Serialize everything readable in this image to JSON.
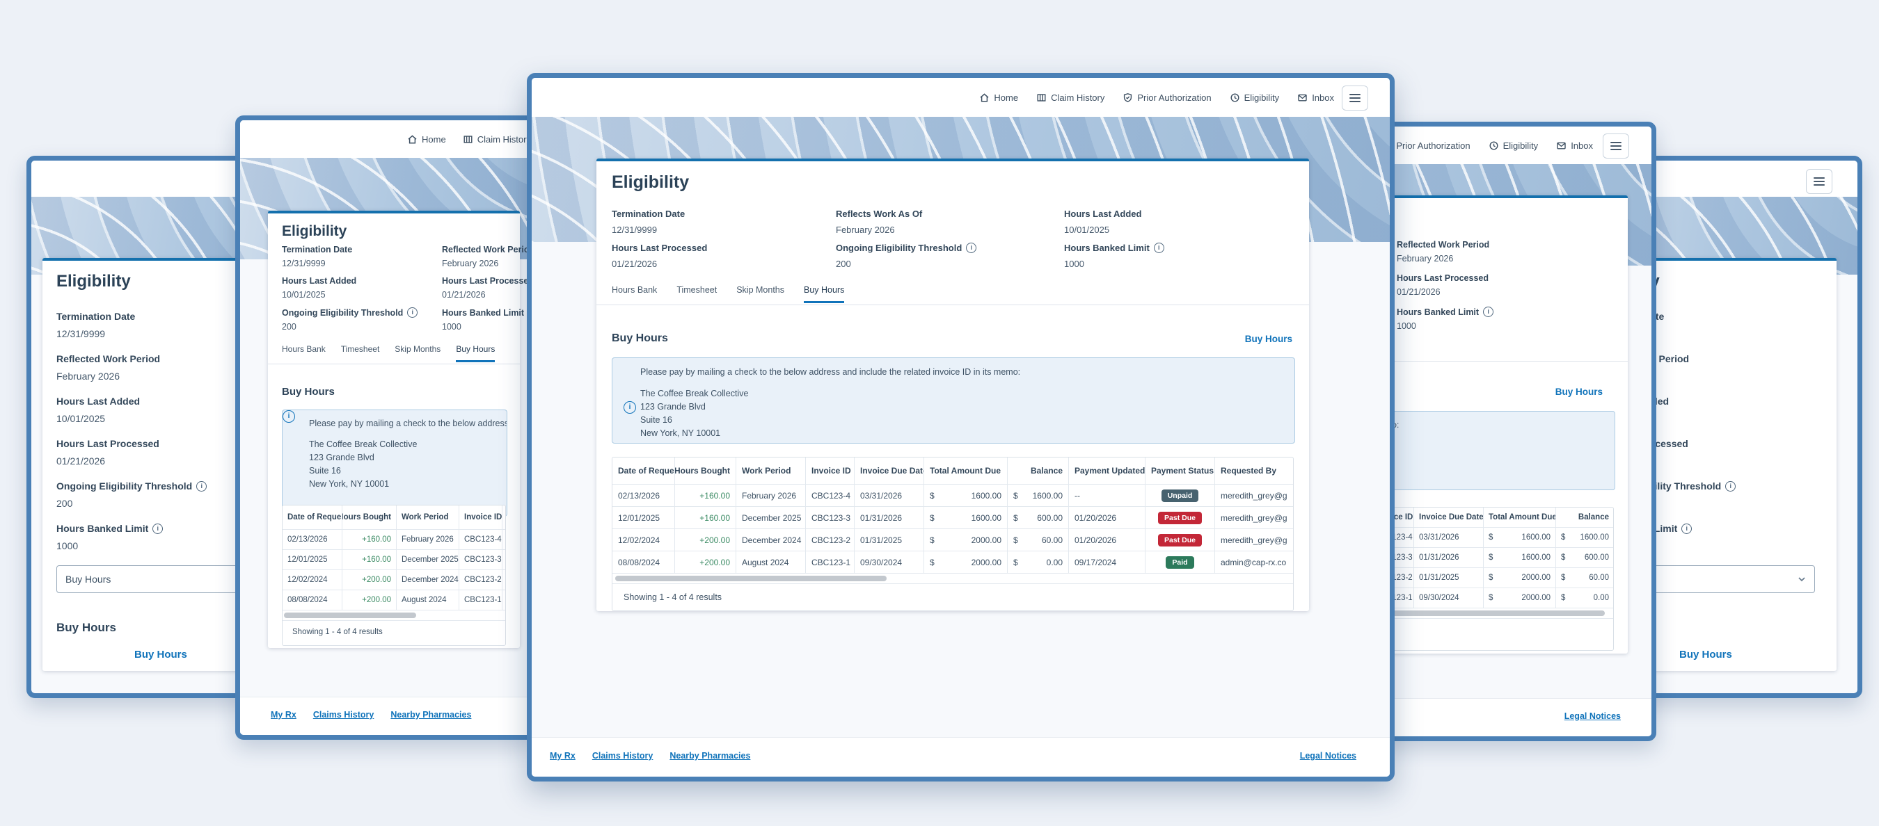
{
  "colors": {
    "window_border": "#4a80b6",
    "accent_blue": "#1073ba",
    "card_accent": "#1470ad",
    "badge_unpaid": "#47626f",
    "badge_pastdue": "#c32737",
    "badge_paid": "#2c7a5b",
    "hours_positive": "#3a8a63"
  },
  "nav": {
    "items": [
      {
        "label": "Home",
        "icon": "home-icon"
      },
      {
        "label": "Claim History",
        "icon": "claim-history-icon"
      },
      {
        "label": "Prior Authorization",
        "icon": "prior-authorization-icon"
      },
      {
        "label": "Eligibility",
        "icon": "eligibility-icon"
      },
      {
        "label": "Inbox",
        "icon": "inbox-icon"
      }
    ]
  },
  "eligibility": {
    "title": "Eligibility",
    "tabs": [
      "Hours Bank",
      "Timesheet",
      "Skip Months",
      "Buy Hours"
    ],
    "active_tab": "Buy Hours",
    "fields": {
      "termination": {
        "label": "Termination Date",
        "value": "12/31/9999"
      },
      "reflects": {
        "label": "Reflects Work As Of",
        "value": "February 2026"
      },
      "reflected": {
        "label": "Reflected Work Period",
        "value": "February 2026"
      },
      "added": {
        "label": "Hours Last Added",
        "value": "10/01/2025"
      },
      "processed": {
        "label": "Hours Last Processed",
        "value": "01/21/2026"
      },
      "threshold": {
        "label": "Ongoing Eligibility Threshold",
        "value": "200",
        "info": true
      },
      "banked": {
        "label": "Hours Banked Limit",
        "value": "1000",
        "info": true
      }
    }
  },
  "buy_hours": {
    "heading": "Buy Hours",
    "link_label": "Buy Hours",
    "mobile_select_value": "Buy Hours",
    "notice": "Please pay by mailing a check to the below address and include the related invoice ID in its memo:",
    "address": [
      "The Coffee Break Collective",
      "123 Grande Blvd",
      "Suite 16",
      "New York, NY 10001"
    ],
    "table": {
      "currency": "$",
      "columns": {
        "date": "Date of Request",
        "hours": "Hours Bought",
        "work": "Work Period",
        "invoice": "Invoice ID",
        "due": "Invoice Due Date",
        "total": "Total Amount Due",
        "balance": "Balance",
        "updated": "Payment Updated",
        "status": "Payment Status",
        "requested": "Requested By"
      },
      "rows": [
        {
          "date": "02/13/2026",
          "hours": "+160.00",
          "work": "February 2026",
          "invoice": "CBC123-4",
          "due": "03/31/2026",
          "total": "1600.00",
          "balance": "1600.00",
          "updated": "--",
          "status": "Unpaid",
          "status_type": "unpaid",
          "requested": "meredith_grey@g"
        },
        {
          "date": "12/01/2025",
          "hours": "+160.00",
          "work": "December 2025",
          "invoice": "CBC123-3",
          "due": "01/31/2026",
          "total": "1600.00",
          "balance": "600.00",
          "updated": "01/20/2026",
          "status": "Past Due",
          "status_type": "pastdue",
          "requested": "meredith_grey@g"
        },
        {
          "date": "12/02/2024",
          "hours": "+200.00",
          "work": "December 2024",
          "invoice": "CBC123-2",
          "due": "01/31/2025",
          "total": "2000.00",
          "balance": "60.00",
          "updated": "01/20/2026",
          "status": "Past Due",
          "status_type": "pastdue",
          "requested": "meredith_grey@g"
        },
        {
          "date": "08/08/2024",
          "hours": "+200.00",
          "work": "August 2024",
          "invoice": "CBC123-1",
          "due": "09/30/2024",
          "total": "2000.00",
          "balance": "0.00",
          "updated": "09/17/2024",
          "status": "Paid",
          "status_type": "paid",
          "requested": "admin@cap-rx.co"
        }
      ],
      "summary": "Showing 1 - 4 of 4 results"
    }
  },
  "footer": {
    "links": [
      "My Rx",
      "Claims History",
      "Nearby Pharmacies"
    ],
    "legal": "Legal Notices"
  }
}
